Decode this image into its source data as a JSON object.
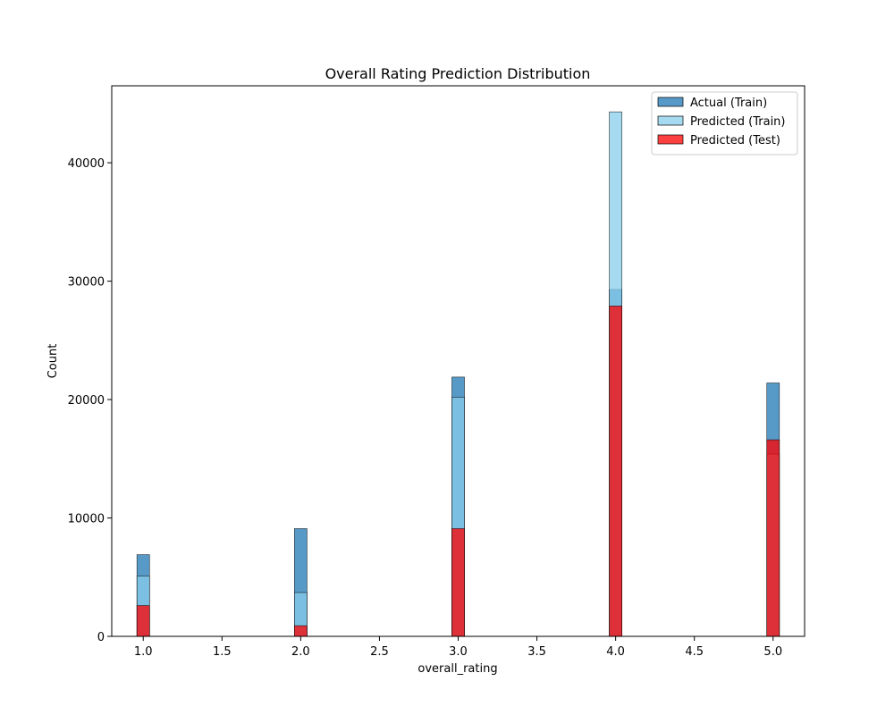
{
  "chart_data": {
    "type": "bar",
    "title": "Overall Rating Prediction Distribution",
    "xlabel": "overall_rating",
    "ylabel": "Count",
    "xlim": [
      0.8,
      5.2
    ],
    "ylim": [
      0,
      46500
    ],
    "xticks": [
      "1.0",
      "1.5",
      "2.0",
      "2.5",
      "3.0",
      "3.5",
      "4.0",
      "4.5",
      "5.0"
    ],
    "yticks": [
      "0",
      "10000",
      "20000",
      "30000",
      "40000"
    ],
    "grid": false,
    "legend_position": "top-right",
    "series": [
      {
        "name": "Actual (Train)",
        "color": "#1f77b4",
        "x": [
          1.0,
          2.0,
          3.0,
          4.0,
          5.0
        ],
        "values": [
          6900,
          9100,
          21900,
          29300,
          21400
        ]
      },
      {
        "name": "Predicted (Train)",
        "color": "#87ceeb",
        "x": [
          1.0,
          2.0,
          3.0,
          4.0,
          5.0
        ],
        "values": [
          5100,
          3700,
          20200,
          44300,
          15400
        ]
      },
      {
        "name": "Predicted (Test)",
        "color": "#ff0000",
        "x": [
          1.0,
          2.0,
          3.0,
          4.0,
          5.0
        ],
        "values": [
          2600,
          900,
          9100,
          27900,
          16600
        ]
      }
    ]
  }
}
